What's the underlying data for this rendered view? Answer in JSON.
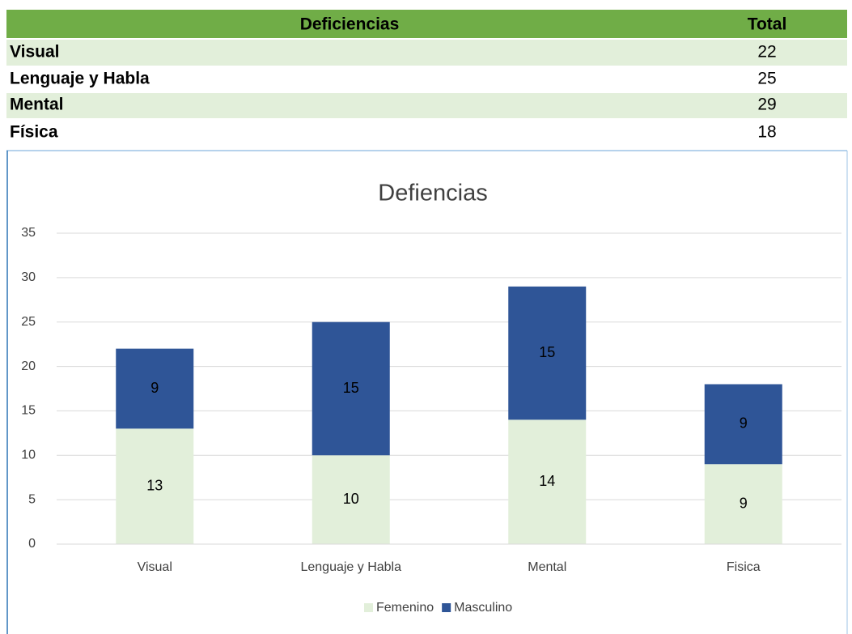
{
  "table": {
    "header": [
      "Deficiencias",
      "Total"
    ],
    "rows": [
      [
        "Visual",
        "22"
      ],
      [
        "Lenguaje y Habla",
        "25"
      ],
      [
        "Mental",
        "29"
      ],
      [
        "Física",
        "18"
      ]
    ]
  },
  "chart_data": {
    "type": "bar",
    "stacked": true,
    "title": "Defiencias",
    "categories": [
      "Visual",
      "Lenguaje y Habla",
      "Mental",
      "Fisica"
    ],
    "series": [
      {
        "name": "Femenino",
        "color": "#e2efda",
        "values": [
          13,
          10,
          14,
          9
        ]
      },
      {
        "name": "Masculino",
        "color": "#2f5597",
        "values": [
          9,
          15,
          15,
          9
        ]
      }
    ],
    "ylim": [
      0,
      35
    ],
    "yticks": [
      0,
      5,
      10,
      15,
      20,
      25,
      30,
      35
    ],
    "grid": true,
    "legend": "bottom"
  }
}
